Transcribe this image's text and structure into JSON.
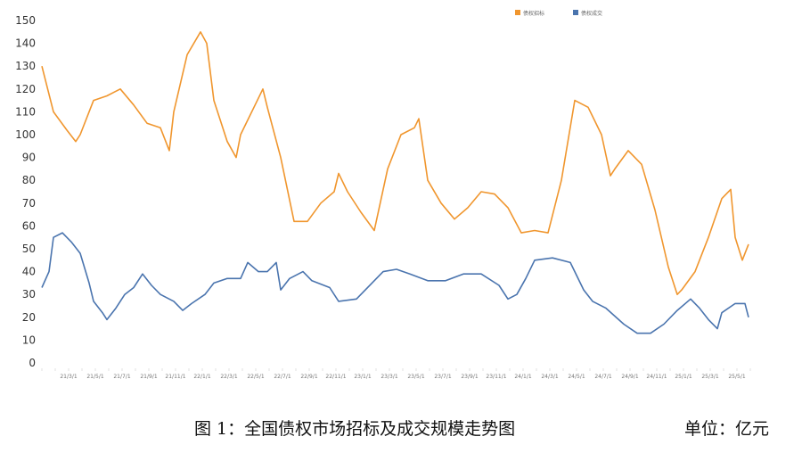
{
  "chart_data": {
    "type": "line",
    "title": "",
    "xlabel": "",
    "ylabel": "",
    "ylim": [
      0,
      150
    ],
    "yticks": [
      0,
      10,
      20,
      30,
      40,
      50,
      60,
      70,
      80,
      90,
      100,
      110,
      120,
      130,
      140,
      150
    ],
    "xlim": [
      "2021-01-01",
      "2025-06-01"
    ],
    "xtick_labels": [
      "21/3/1",
      "21/5/1",
      "21/7/1",
      "21/9/1",
      "21/11/1",
      "22/1/1",
      "22/3/1",
      "22/5/1",
      "22/7/1",
      "22/9/1",
      "22/11/1",
      "23/1/1",
      "23/3/1",
      "23/5/1",
      "23/7/1",
      "23/9/1",
      "23/11/1",
      "24/1/1",
      "24/3/1",
      "24/5/1",
      "24/7/1",
      "24/9/1",
      "24/11/1",
      "25/1/1",
      "25/3/1",
      "25/5/1"
    ],
    "xtick_dates": [
      "2021-03-01",
      "2021-05-01",
      "2021-07-01",
      "2021-09-01",
      "2021-11-01",
      "2022-01-01",
      "2022-03-01",
      "2022-05-01",
      "2022-07-01",
      "2022-09-01",
      "2022-11-01",
      "2023-01-01",
      "2023-03-01",
      "2023-05-01",
      "2023-07-01",
      "2023-09-01",
      "2023-11-01",
      "2024-01-01",
      "2024-03-01",
      "2024-05-01",
      "2024-07-01",
      "2024-09-01",
      "2024-11-01",
      "2025-01-01",
      "2025-03-01",
      "2025-05-01"
    ],
    "grid": false,
    "legend_position": "top-right",
    "series": [
      {
        "name": "债权招标",
        "color": "#F0962E",
        "points": [
          [
            "2021-01-01",
            130
          ],
          [
            "2021-01-27",
            110
          ],
          [
            "2021-02-27",
            102
          ],
          [
            "2021-03-17",
            97
          ],
          [
            "2021-03-27",
            100
          ],
          [
            "2021-04-27",
            115
          ],
          [
            "2021-05-27",
            117
          ],
          [
            "2021-06-27",
            120
          ],
          [
            "2021-07-27",
            113
          ],
          [
            "2021-08-27",
            105
          ],
          [
            "2021-09-27",
            103
          ],
          [
            "2021-10-17",
            93
          ],
          [
            "2021-10-27",
            110
          ],
          [
            "2021-11-27",
            135
          ],
          [
            "2021-12-27",
            145
          ],
          [
            "2022-01-11",
            140
          ],
          [
            "2022-01-27",
            115
          ],
          [
            "2022-02-27",
            97
          ],
          [
            "2022-03-17",
            90
          ],
          [
            "2022-03-27",
            100
          ],
          [
            "2022-04-27",
            112
          ],
          [
            "2022-05-17",
            120
          ],
          [
            "2022-05-27",
            112
          ],
          [
            "2022-06-27",
            90
          ],
          [
            "2022-07-27",
            62
          ],
          [
            "2022-08-27",
            62
          ],
          [
            "2022-09-27",
            70
          ],
          [
            "2022-10-27",
            75
          ],
          [
            "2022-11-07",
            83
          ],
          [
            "2022-11-27",
            75
          ],
          [
            "2022-12-27",
            66
          ],
          [
            "2023-01-27",
            58
          ],
          [
            "2023-02-27",
            85
          ],
          [
            "2023-03-27",
            100
          ],
          [
            "2023-04-27",
            103
          ],
          [
            "2023-05-07",
            107
          ],
          [
            "2023-05-27",
            80
          ],
          [
            "2023-06-27",
            70
          ],
          [
            "2023-07-27",
            63
          ],
          [
            "2023-08-27",
            68
          ],
          [
            "2023-09-27",
            75
          ],
          [
            "2023-10-27",
            74
          ],
          [
            "2023-11-27",
            68
          ],
          [
            "2023-12-27",
            57
          ],
          [
            "2024-01-27",
            58
          ],
          [
            "2024-02-27",
            57
          ],
          [
            "2024-03-27",
            80
          ],
          [
            "2024-04-27",
            115
          ],
          [
            "2024-05-27",
            112
          ],
          [
            "2024-06-27",
            100
          ],
          [
            "2024-07-17",
            82
          ],
          [
            "2024-07-27",
            85
          ],
          [
            "2024-08-27",
            93
          ],
          [
            "2024-09-27",
            87
          ],
          [
            "2024-10-27",
            67
          ],
          [
            "2024-11-27",
            42
          ],
          [
            "2024-12-17",
            30
          ],
          [
            "2024-12-27",
            32
          ],
          [
            "2025-01-27",
            40
          ],
          [
            "2025-02-27",
            55
          ],
          [
            "2025-03-27",
            72
          ],
          [
            "2025-04-17",
            76
          ],
          [
            "2025-04-27",
            55
          ],
          [
            "2025-05-13",
            45
          ],
          [
            "2025-05-27",
            52
          ]
        ]
      },
      {
        "name": "债权成交",
        "color": "#4A74AE",
        "points": [
          [
            "2021-01-01",
            33
          ],
          [
            "2021-01-17",
            40
          ],
          [
            "2021-01-27",
            55
          ],
          [
            "2021-02-17",
            57
          ],
          [
            "2021-03-07",
            53
          ],
          [
            "2021-03-27",
            48
          ],
          [
            "2021-04-17",
            35
          ],
          [
            "2021-04-27",
            27
          ],
          [
            "2021-05-17",
            22
          ],
          [
            "2021-05-27",
            19
          ],
          [
            "2021-06-17",
            24
          ],
          [
            "2021-07-07",
            30
          ],
          [
            "2021-07-27",
            33
          ],
          [
            "2021-08-17",
            39
          ],
          [
            "2021-09-07",
            34
          ],
          [
            "2021-09-27",
            30
          ],
          [
            "2021-10-27",
            27
          ],
          [
            "2021-11-17",
            23
          ],
          [
            "2021-12-07",
            26
          ],
          [
            "2022-01-07",
            30
          ],
          [
            "2022-01-27",
            35
          ],
          [
            "2022-02-27",
            37
          ],
          [
            "2022-03-27",
            37
          ],
          [
            "2022-04-13",
            44
          ],
          [
            "2022-05-07",
            40
          ],
          [
            "2022-05-27",
            40
          ],
          [
            "2022-06-17",
            44
          ],
          [
            "2022-06-27",
            32
          ],
          [
            "2022-07-17",
            37
          ],
          [
            "2022-08-17",
            40
          ],
          [
            "2022-09-07",
            36
          ],
          [
            "2022-10-17",
            33
          ],
          [
            "2022-11-07",
            27
          ],
          [
            "2022-12-17",
            28
          ],
          [
            "2023-01-27",
            36
          ],
          [
            "2023-02-17",
            40
          ],
          [
            "2023-03-17",
            41
          ],
          [
            "2023-04-17",
            39
          ],
          [
            "2023-05-27",
            36
          ],
          [
            "2023-07-07",
            36
          ],
          [
            "2023-08-17",
            39
          ],
          [
            "2023-09-27",
            39
          ],
          [
            "2023-11-07",
            34
          ],
          [
            "2023-11-27",
            28
          ],
          [
            "2023-12-17",
            30
          ],
          [
            "2024-01-07",
            37
          ],
          [
            "2024-01-27",
            45
          ],
          [
            "2024-03-07",
            46
          ],
          [
            "2024-04-17",
            44
          ],
          [
            "2024-05-17",
            32
          ],
          [
            "2024-06-07",
            27
          ],
          [
            "2024-07-07",
            24
          ],
          [
            "2024-08-17",
            17
          ],
          [
            "2024-09-17",
            13
          ],
          [
            "2024-10-17",
            13
          ],
          [
            "2024-11-17",
            17
          ],
          [
            "2024-12-17",
            23
          ],
          [
            "2025-01-17",
            28
          ],
          [
            "2025-02-07",
            24
          ],
          [
            "2025-02-27",
            19
          ],
          [
            "2025-03-17",
            15
          ],
          [
            "2025-03-27",
            22
          ],
          [
            "2025-04-27",
            26
          ],
          [
            "2025-05-19",
            26
          ],
          [
            "2025-05-27",
            20
          ]
        ]
      }
    ]
  },
  "caption": {
    "figure_title": "图 1：全国债权市场招标及成交规模走势图",
    "unit": "单位：亿元"
  }
}
